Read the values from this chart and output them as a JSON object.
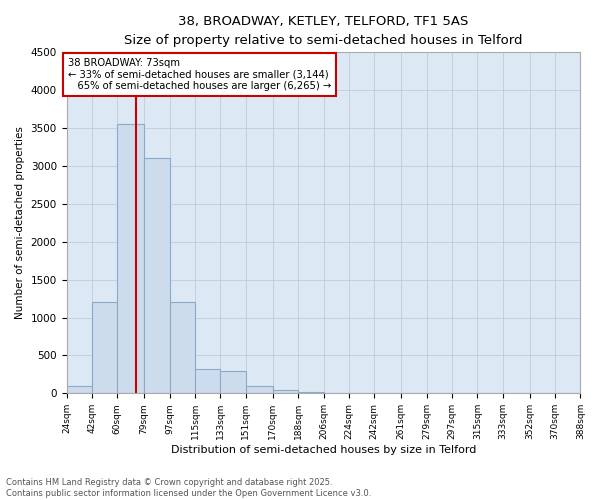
{
  "title_line1": "38, BROADWAY, KETLEY, TELFORD, TF1 5AS",
  "title_line2": "Size of property relative to semi-detached houses in Telford",
  "xlabel": "Distribution of semi-detached houses by size in Telford",
  "ylabel": "Number of semi-detached properties",
  "property_size": 73,
  "property_label": "38 BROADWAY: 73sqm",
  "pct_smaller": 33,
  "pct_larger": 65,
  "count_smaller": 3144,
  "count_larger": 6265,
  "bin_labels": [
    "24sqm",
    "42sqm",
    "60sqm",
    "79sqm",
    "97sqm",
    "115sqm",
    "133sqm",
    "151sqm",
    "170sqm",
    "188sqm",
    "206sqm",
    "224sqm",
    "242sqm",
    "261sqm",
    "279sqm",
    "297sqm",
    "315sqm",
    "333sqm",
    "352sqm",
    "370sqm",
    "388sqm"
  ],
  "bin_edges": [
    24,
    42,
    60,
    79,
    97,
    115,
    133,
    151,
    170,
    188,
    206,
    224,
    242,
    261,
    279,
    297,
    315,
    333,
    352,
    370,
    388
  ],
  "counts": [
    100,
    1200,
    3550,
    3100,
    1200,
    320,
    300,
    100,
    50,
    20,
    5,
    2,
    1,
    0,
    0,
    0,
    0,
    0,
    0,
    0
  ],
  "bar_facecolor": "#ccdcec",
  "bar_edgecolor": "#8aaac8",
  "bar_linewidth": 0.8,
  "axbg_color": "#dce8f4",
  "line_color": "#cc0000",
  "line_width": 1.5,
  "box_edgecolor": "#cc0000",
  "box_facecolor": "#ffffff",
  "grid_color": "#c0ccd8",
  "ylim": [
    0,
    4500
  ],
  "yticks": [
    0,
    500,
    1000,
    1500,
    2000,
    2500,
    3000,
    3500,
    4000,
    4500
  ],
  "footer_line1": "Contains HM Land Registry data © Crown copyright and database right 2025.",
  "footer_line2": "Contains public sector information licensed under the Open Government Licence v3.0."
}
